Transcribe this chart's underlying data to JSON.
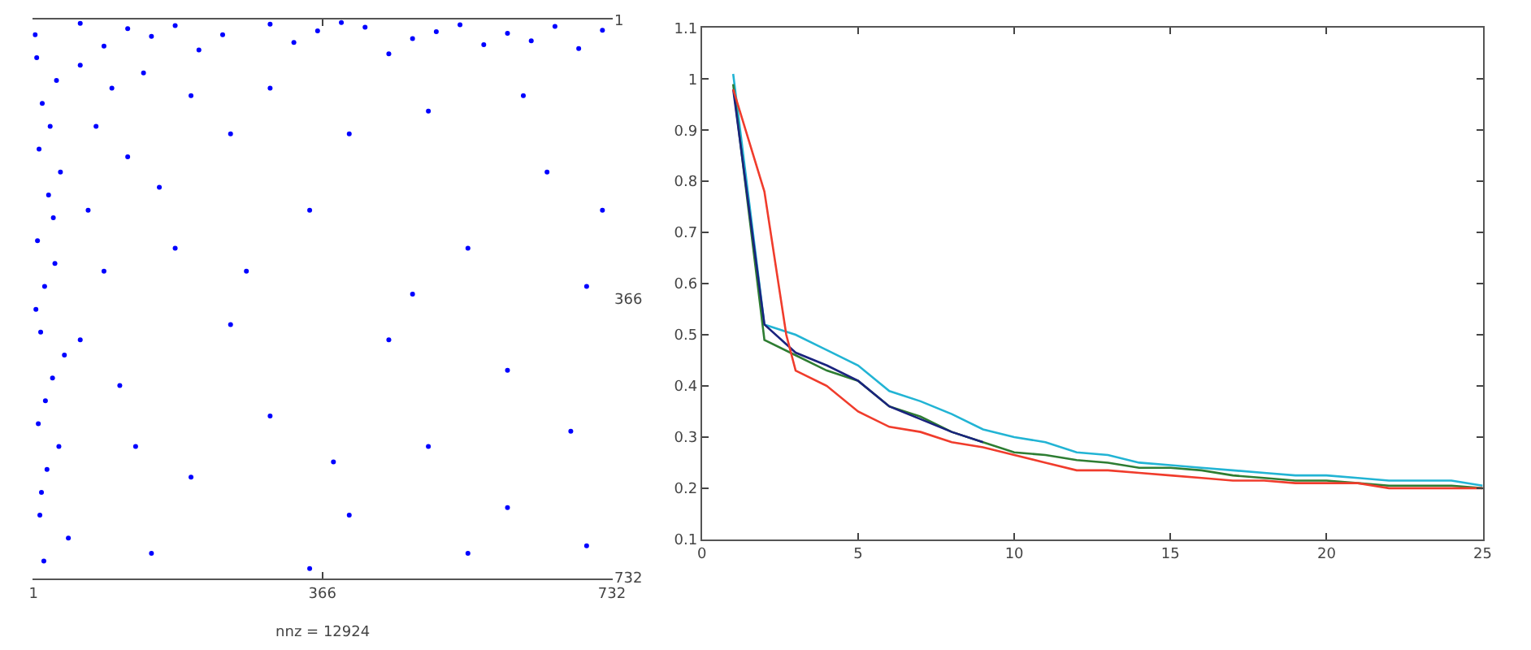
{
  "chart_data": [
    {
      "type": "scatter",
      "xlabel": "nnz = 12924",
      "xlim": [
        0,
        733
      ],
      "xticks": [
        1,
        366,
        732
      ],
      "y2lim": [
        733,
        0
      ],
      "y2ticks": [
        1,
        366,
        732
      ],
      "marker": "circle",
      "series": [
        {
          "color": "#0000ff",
          "axis": "y2",
          "x": [
            5,
            12,
            8,
            20,
            6,
            15,
            10,
            25,
            7,
            18,
            9,
            14,
            30,
            35,
            28,
            40,
            33,
            45,
            3,
            22,
            4,
            16,
            11,
            26,
            60,
            120,
            180,
            240,
            300,
            360,
            420,
            480,
            540,
            600,
            660,
            720,
            90,
            210,
            330,
            450,
            570,
            690,
            150,
            390,
            510,
            630,
            60,
            100,
            80,
            140,
            120,
            200,
            70,
            160,
            250,
            90,
            180,
            300,
            60,
            110,
            400,
            500,
            650,
            350,
            550,
            700,
            250,
            450,
            600,
            300,
            500,
            680,
            200,
            400,
            600,
            150,
            350,
            550,
            700,
            270,
            480,
            620,
            130,
            380,
            720
          ],
          "values": [
            50,
            110,
            170,
            230,
            290,
            350,
            410,
            470,
            530,
            590,
            650,
            710,
            80,
            200,
            320,
            440,
            560,
            680,
            20,
            140,
            380,
            500,
            620,
            260,
            5,
            12,
            8,
            20,
            6,
            15,
            10,
            25,
            7,
            18,
            9,
            14,
            35,
            40,
            30,
            45,
            33,
            38,
            22,
            4,
            16,
            28,
            60,
            90,
            140,
            70,
            180,
            100,
            250,
            220,
            150,
            330,
            300,
            90,
            420,
            480,
            150,
            120,
            200,
            250,
            300,
            350,
            400,
            420,
            460,
            520,
            560,
            540,
            600,
            650,
            640,
            700,
            720,
            700,
            690,
            330,
            360,
            100,
            560,
            580,
            250
          ]
        }
      ]
    },
    {
      "type": "line",
      "xlim": [
        0,
        25
      ],
      "xticks": [
        0,
        5,
        10,
        15,
        20,
        25
      ],
      "ylim": [
        0.1,
        1.1
      ],
      "yticks": [
        0.1,
        0.2,
        0.3,
        0.4,
        0.5,
        0.6,
        0.7,
        0.8,
        0.9,
        1,
        1.1
      ],
      "marker": "none",
      "line_style": "solid",
      "series": [
        {
          "color": "#22b4d4",
          "x": [
            1,
            2,
            3,
            4,
            5,
            6,
            7,
            8,
            9,
            10,
            11,
            12,
            13,
            14,
            15,
            16,
            17,
            18,
            19,
            20,
            21,
            22,
            23,
            24,
            25
          ],
          "values": [
            1.01,
            0.52,
            0.5,
            0.47,
            0.44,
            0.39,
            0.37,
            0.345,
            0.315,
            0.3,
            0.29,
            0.27,
            0.265,
            0.25,
            0.245,
            0.24,
            0.235,
            0.23,
            0.225,
            0.225,
            0.22,
            0.215,
            0.215,
            0.215,
            0.205
          ]
        },
        {
          "color": "#2e7d32",
          "x": [
            1,
            2,
            3,
            4,
            5,
            6,
            7,
            8,
            9,
            10,
            11,
            12,
            13,
            14,
            15,
            16,
            17,
            18,
            19,
            20,
            21,
            22,
            23,
            24,
            25
          ],
          "values": [
            0.99,
            0.49,
            0.46,
            0.43,
            0.41,
            0.36,
            0.34,
            0.31,
            0.29,
            0.27,
            0.265,
            0.255,
            0.25,
            0.24,
            0.24,
            0.235,
            0.225,
            0.22,
            0.215,
            0.215,
            0.21,
            0.205,
            0.205,
            0.205,
            0.2
          ]
        },
        {
          "color": "#1a237e",
          "x": [
            1,
            2,
            3,
            4,
            5,
            6,
            7,
            8,
            9
          ],
          "values": [
            0.98,
            0.52,
            0.465,
            0.44,
            0.41,
            0.36,
            0.335,
            0.31,
            0.29
          ]
        },
        {
          "color": "#f03c2c",
          "x": [
            1,
            2,
            2.7,
            3,
            4,
            5,
            6,
            7,
            8,
            9,
            10,
            11,
            12,
            13,
            14,
            15,
            16,
            17,
            18,
            19,
            20,
            21,
            22,
            23,
            24,
            25
          ],
          "values": [
            0.98,
            0.78,
            0.5,
            0.43,
            0.4,
            0.35,
            0.32,
            0.31,
            0.29,
            0.28,
            0.265,
            0.25,
            0.235,
            0.235,
            0.23,
            0.225,
            0.22,
            0.215,
            0.215,
            0.21,
            0.21,
            0.21,
            0.2,
            0.2,
            0.2,
            0.2
          ]
        }
      ]
    }
  ]
}
